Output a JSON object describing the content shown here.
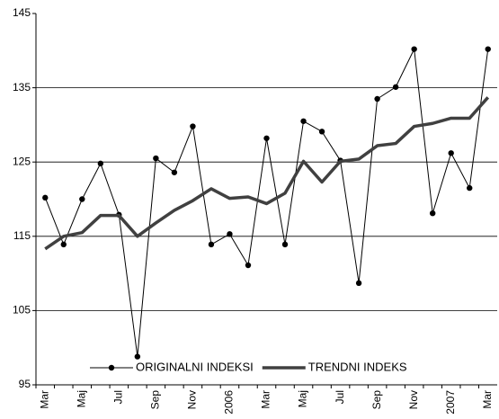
{
  "chart_data": {
    "type": "line",
    "categories": [
      "Mar",
      null,
      "Maj",
      null,
      "Jul",
      null,
      "Sep",
      null,
      "Nov",
      null,
      "2006",
      null,
      "Mar",
      null,
      "Maj",
      null,
      "Jul",
      null,
      "Sep",
      null,
      "Nov",
      null,
      "2007",
      null,
      "Mar"
    ],
    "series": [
      {
        "name": "ORIGINALNI INDEKSI",
        "color": "#000000",
        "values": [
          120.2,
          113.9,
          120.0,
          124.8,
          117.9,
          98.8,
          125.5,
          123.6,
          129.8,
          113.9,
          115.3,
          111.1,
          128.2,
          113.9,
          130.5,
          129.1,
          125.2,
          108.7,
          133.5,
          135.1,
          140.2,
          118.1,
          126.2,
          121.5,
          140.2
        ]
      },
      {
        "name": "TRENDNI INDEKS",
        "color": "#404040",
        "values": [
          113.3,
          115.0,
          115.5,
          117.8,
          117.8,
          115.0,
          116.8,
          118.5,
          119.8,
          121.4,
          120.1,
          120.3,
          119.4,
          120.8,
          125.1,
          122.3,
          125.1,
          125.4,
          127.2,
          127.5,
          129.8,
          130.2,
          130.9,
          130.9,
          133.7
        ]
      }
    ],
    "ylim": [
      95,
      145
    ],
    "yticks": [
      95,
      105,
      115,
      125,
      135,
      145
    ],
    "grid": true,
    "legend": "bottom"
  }
}
